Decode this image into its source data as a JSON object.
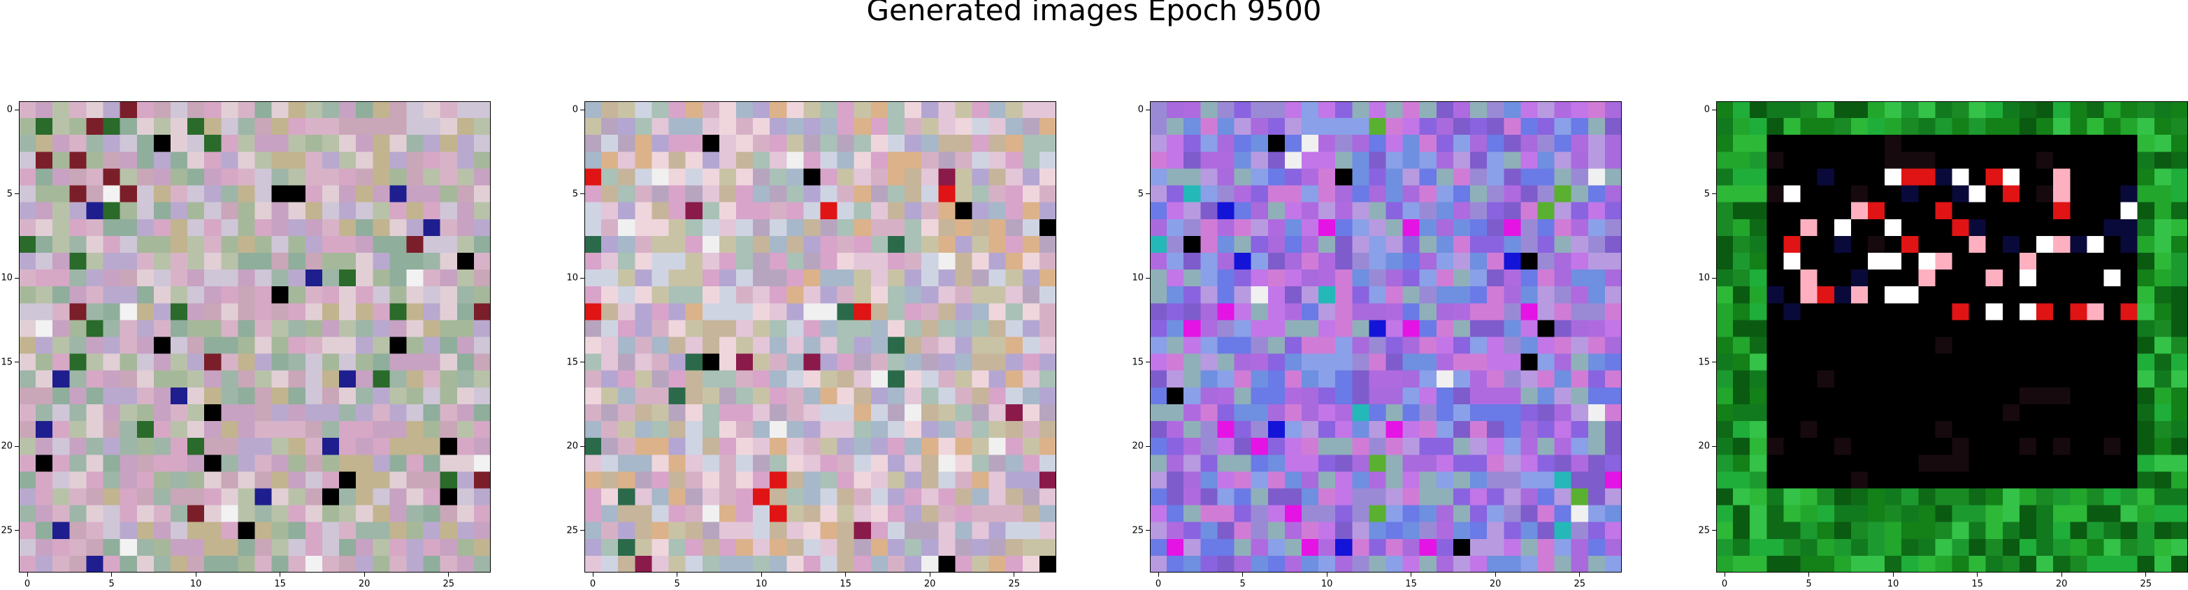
{
  "title": "Generated images Epoch 9500",
  "chart_data": [
    {
      "type": "heatmap",
      "xticks": [
        "0",
        "5",
        "10",
        "15",
        "20",
        "25"
      ],
      "yticks": [
        "0",
        "5",
        "10",
        "15",
        "20",
        "25"
      ],
      "xlim": [
        -0.5,
        27.5
      ],
      "ylim": [
        27.5,
        -0.5
      ],
      "grid": false,
      "grid_size": [
        28,
        28
      ],
      "palette": [
        "#c9a6b8",
        "#a6b89a",
        "#d8b3c8",
        "#b8c2a8",
        "#c7a2c2",
        "#e2cfd6",
        "#9db6a8",
        "#c2b48f",
        "#d7a7c6",
        "#b9a9cf",
        "#8fae9c",
        "#cfc6d8"
      ],
      "accents": [
        "#1e1e8e",
        "#000000",
        "#7a1e2a",
        "#2a6a2a",
        "#f2f2f2"
      ]
    },
    {
      "type": "heatmap",
      "xticks": [
        "0",
        "5",
        "10",
        "15",
        "20",
        "25"
      ],
      "yticks": [
        "0",
        "5",
        "10",
        "15",
        "20",
        "25"
      ],
      "xlim": [
        -0.5,
        27.5
      ],
      "ylim": [
        27.5,
        -0.5
      ],
      "grid": false,
      "grid_size": [
        28,
        28
      ],
      "palette": [
        "#d6b1c6",
        "#b4a6d2",
        "#c9c3a6",
        "#e3c6d8",
        "#a9c1b6",
        "#d8a4c9",
        "#c6b59a",
        "#efd6dd",
        "#b7a5c0",
        "#a6b8c9",
        "#dcb28a",
        "#cfd4e3"
      ],
      "accents": [
        "#000000",
        "#e01414",
        "#8a1a4a",
        "#2a6a4a",
        "#f0f0f0"
      ]
    },
    {
      "type": "heatmap",
      "xticks": [
        "0",
        "5",
        "10",
        "15",
        "20",
        "25"
      ],
      "yticks": [
        "0",
        "5",
        "10",
        "15",
        "20",
        "25"
      ],
      "xlim": [
        -0.5,
        27.5
      ],
      "ylim": [
        27.5,
        -0.5
      ],
      "grid": false,
      "grid_size": [
        28,
        28
      ],
      "palette": [
        "#8a63e0",
        "#b06ae0",
        "#6a7ae6",
        "#c276e8",
        "#9a8ad6",
        "#7e5ccc",
        "#d07cd6",
        "#8aa0e8",
        "#a86adc",
        "#8fb0b8",
        "#b89ae0",
        "#6f8fe0"
      ],
      "accents": [
        "#1414d8",
        "#000000",
        "#e414e4",
        "#24b8b8",
        "#5ab030",
        "#f0f0f0"
      ]
    },
    {
      "type": "heatmap",
      "xticks": [
        "0",
        "5",
        "10",
        "15",
        "20",
        "25"
      ],
      "yticks": [
        "0",
        "5",
        "10",
        "15",
        "20",
        "25"
      ],
      "xlim": [
        -0.5,
        27.5
      ],
      "ylim": [
        27.5,
        -0.5
      ],
      "grid": false,
      "grid_size": [
        28,
        28
      ],
      "palette": [
        "#1a8a24",
        "#0e6a16",
        "#22a62c",
        "#138018",
        "#2db838",
        "#0b5a12",
        "#1c9a30",
        "#34c248",
        "#127a1e",
        "#1fae3a"
      ],
      "accents": [
        "#000000",
        "#ffffff",
        "#e01414",
        "#0a0a3a",
        "#ffb0c0"
      ]
    }
  ]
}
